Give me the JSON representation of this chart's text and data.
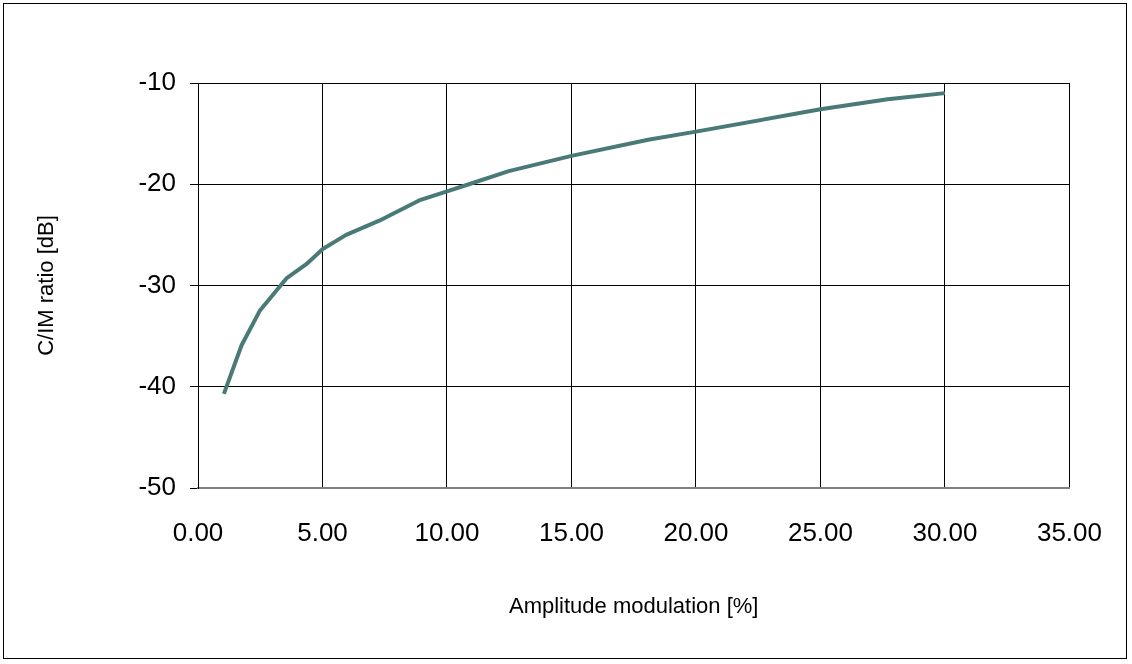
{
  "chart_data": {
    "type": "line",
    "xlabel": "Amplitude modulation [%]",
    "ylabel": "C/IM ratio [dB]",
    "x": [
      1.04,
      1.75,
      2.48,
      3.55,
      4.35,
      5.01,
      5.95,
      7.28,
      8.88,
      10.0,
      10.88,
      12.48,
      15.0,
      18.08,
      20.0,
      25.0,
      27.7,
      30.0
    ],
    "series": [
      {
        "color": "#4a7a78",
        "values": [
          -40.7,
          -35.9,
          -32.5,
          -29.3,
          -27.9,
          -26.4,
          -25.0,
          -23.6,
          -21.6,
          -20.7,
          -20.0,
          -18.7,
          -17.2,
          -15.6,
          -14.8,
          -12.6,
          -11.6,
          -11.0
        ]
      }
    ],
    "xlim": [
      0,
      35
    ],
    "xticks": [
      {
        "value": 0,
        "label": "0.00"
      },
      {
        "value": 5,
        "label": "5.00"
      },
      {
        "value": 10,
        "label": "10.00"
      },
      {
        "value": 15,
        "label": "15.00"
      },
      {
        "value": 20,
        "label": "20.00"
      },
      {
        "value": 25,
        "label": "25.00"
      },
      {
        "value": 30,
        "label": "30.00"
      },
      {
        "value": 35,
        "label": "35.00"
      }
    ],
    "ylim": [
      -50,
      -10
    ],
    "yticks": [
      -50,
      -40,
      -30,
      -20,
      -10
    ],
    "grid": true,
    "legend": false,
    "marker": "none",
    "line_style": "solid"
  }
}
